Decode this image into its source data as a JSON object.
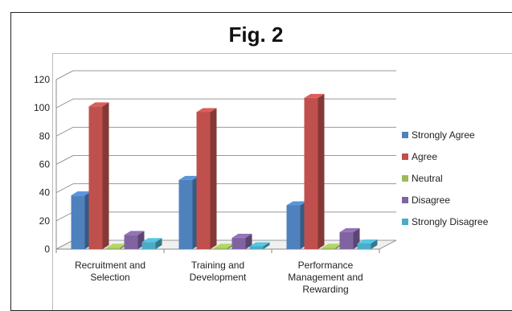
{
  "chart_data": {
    "type": "bar",
    "title": "Fig. 2",
    "categories": [
      [
        "Recruitment and",
        "Selection"
      ],
      [
        "Training and",
        "Development"
      ],
      [
        "Performance",
        "Management and",
        "Rewarding"
      ]
    ],
    "series": [
      {
        "name": "Strongly Agree",
        "values": [
          38,
          49,
          31
        ],
        "color": "#4F81BD"
      },
      {
        "name": "Agree",
        "values": [
          101,
          97,
          107
        ],
        "color": "#C0504D"
      },
      {
        "name": "Neutral",
        "values": [
          1,
          1,
          1
        ],
        "color": "#9BBB59"
      },
      {
        "name": "Disagree",
        "values": [
          10,
          8,
          12
        ],
        "color": "#8064A2"
      },
      {
        "name": "Strongly Disagree",
        "values": [
          5,
          2,
          4
        ],
        "color": "#4BACC6"
      }
    ],
    "ylim": [
      0,
      120
    ],
    "yticks": [
      0,
      20,
      40,
      60,
      80,
      100,
      120
    ],
    "grid": true,
    "legend_position": "right"
  }
}
